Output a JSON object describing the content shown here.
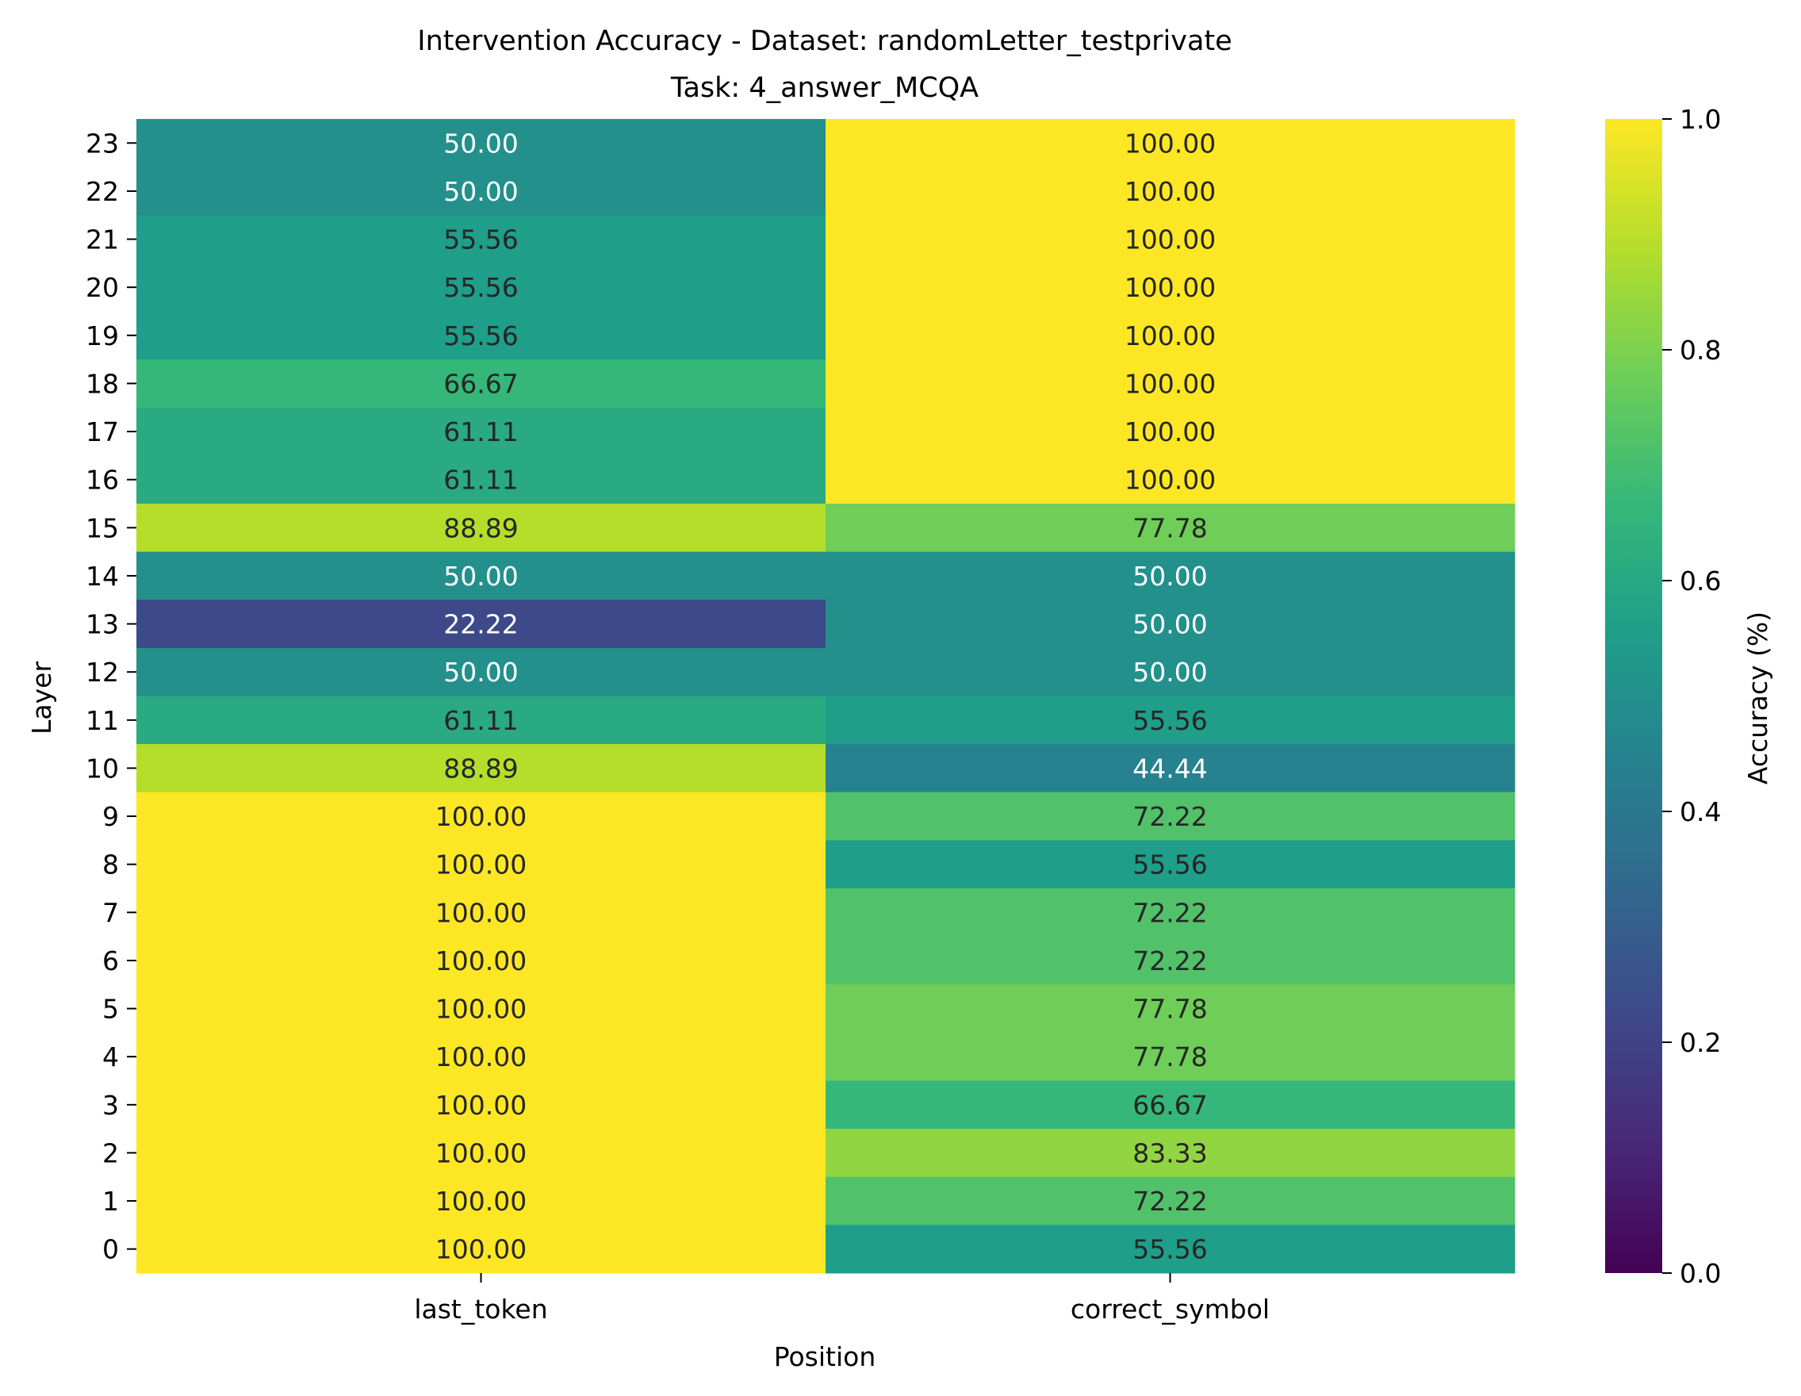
{
  "chart_data": {
    "type": "heatmap",
    "title": "Intervention Accuracy - Dataset: randomLetter_testprivate",
    "subtitle": "Task: 4_answer_MCQA",
    "xlabel": "Position",
    "ylabel": "Layer",
    "x_categories": [
      "last_token",
      "correct_symbol"
    ],
    "y_categories": [
      "23",
      "22",
      "21",
      "20",
      "19",
      "18",
      "17",
      "16",
      "15",
      "14",
      "13",
      "12",
      "11",
      "10",
      "9",
      "8",
      "7",
      "6",
      "5",
      "4",
      "3",
      "2",
      "1",
      "0"
    ],
    "values": [
      [
        0.5,
        1.0
      ],
      [
        0.5,
        1.0
      ],
      [
        0.5556,
        1.0
      ],
      [
        0.5556,
        1.0
      ],
      [
        0.5556,
        1.0
      ],
      [
        0.6667,
        1.0
      ],
      [
        0.6111,
        1.0
      ],
      [
        0.6111,
        1.0
      ],
      [
        0.8889,
        0.7778
      ],
      [
        0.5,
        0.5
      ],
      [
        0.2222,
        0.5
      ],
      [
        0.5,
        0.5
      ],
      [
        0.6111,
        0.5556
      ],
      [
        0.8889,
        0.4444
      ],
      [
        1.0,
        0.7222
      ],
      [
        1.0,
        0.5556
      ],
      [
        1.0,
        0.7222
      ],
      [
        1.0,
        0.7222
      ],
      [
        1.0,
        0.7778
      ],
      [
        1.0,
        0.7778
      ],
      [
        1.0,
        0.6667
      ],
      [
        1.0,
        0.8333
      ],
      [
        1.0,
        0.7222
      ],
      [
        1.0,
        0.5556
      ]
    ],
    "cell_labels": [
      [
        "50.00",
        "100.00"
      ],
      [
        "50.00",
        "100.00"
      ],
      [
        "55.56",
        "100.00"
      ],
      [
        "55.56",
        "100.00"
      ],
      [
        "55.56",
        "100.00"
      ],
      [
        "66.67",
        "100.00"
      ],
      [
        "61.11",
        "100.00"
      ],
      [
        "61.11",
        "100.00"
      ],
      [
        "88.89",
        "77.78"
      ],
      [
        "50.00",
        "50.00"
      ],
      [
        "22.22",
        "50.00"
      ],
      [
        "50.00",
        "50.00"
      ],
      [
        "61.11",
        "55.56"
      ],
      [
        "88.89",
        "44.44"
      ],
      [
        "100.00",
        "72.22"
      ],
      [
        "100.00",
        "55.56"
      ],
      [
        "100.00",
        "72.22"
      ],
      [
        "100.00",
        "72.22"
      ],
      [
        "100.00",
        "77.78"
      ],
      [
        "100.00",
        "77.78"
      ],
      [
        "100.00",
        "66.67"
      ],
      [
        "100.00",
        "83.33"
      ],
      [
        "100.00",
        "72.22"
      ],
      [
        "100.00",
        "55.56"
      ]
    ],
    "colorbar": {
      "label": "Accuracy (%)",
      "range": [
        0.0,
        1.0
      ],
      "ticks": [
        "0.0",
        "0.2",
        "0.4",
        "0.6",
        "0.8",
        "1.0"
      ],
      "colormap": "viridis",
      "colors": [
        "#440154",
        "#482878",
        "#3e4989",
        "#31688e",
        "#26828e",
        "#1f9e89",
        "#35b779",
        "#6ece58",
        "#b5de2b",
        "#fde725"
      ]
    },
    "grid": false
  }
}
